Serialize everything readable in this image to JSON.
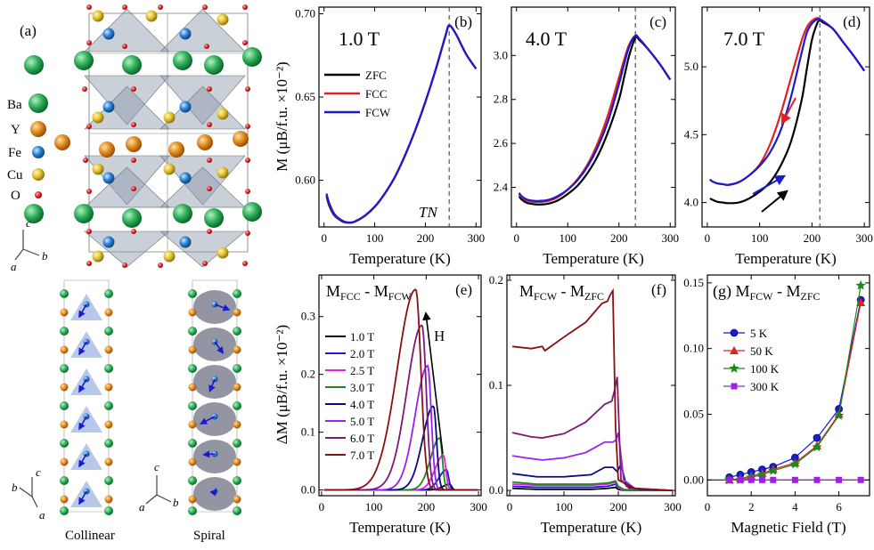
{
  "panel_a": {
    "label": "(a)",
    "atoms": [
      {
        "name": "Ba",
        "color": "#2fae5a"
      },
      {
        "name": "Y",
        "color": "#e08a1e"
      },
      {
        "name": "Fe",
        "color": "#2a7fd0"
      },
      {
        "name": "Cu",
        "color": "#e0c030"
      },
      {
        "name": "O",
        "color": "#dd2222"
      }
    ],
    "axes_top": {
      "c": "c",
      "a": "a",
      "b": "b"
    },
    "axes_bottom": {
      "c": "c",
      "a": "a",
      "b": "b"
    },
    "axes_bottom2": {
      "c": "c",
      "a": "a",
      "b": "b"
    },
    "collinear": "Collinear",
    "spiral": "Spiral"
  },
  "chart_data": [
    {
      "panel": "(b)",
      "type": "line",
      "field_label": "1.0 T",
      "xlabel": "Temperature (K)",
      "ylabel": "M (μB/f.u. ×10⁻²)",
      "xlim": [
        -10,
        310
      ],
      "ylim": [
        0.572,
        0.704
      ],
      "xticks": [
        0,
        100,
        200,
        300
      ],
      "yticks": [
        0.6,
        0.65,
        0.7
      ],
      "ytick_labels": [
        "0.60",
        "0.65",
        "0.70"
      ],
      "annotation": "TN",
      "vline_x": 247,
      "legend": [
        "ZFC",
        "FCC",
        "FCW"
      ],
      "series": [
        {
          "name": "ZFC",
          "color": "#000000",
          "x": [
            5,
            10,
            20,
            30,
            40,
            50,
            60,
            80,
            100,
            120,
            140,
            160,
            180,
            200,
            220,
            240,
            247,
            260,
            280,
            300
          ],
          "y": [
            0.5905,
            0.585,
            0.579,
            0.5765,
            0.5748,
            0.5745,
            0.575,
            0.5785,
            0.584,
            0.592,
            0.602,
            0.615,
            0.63,
            0.647,
            0.666,
            0.687,
            0.693,
            0.688,
            0.676,
            0.667
          ]
        },
        {
          "name": "FCC",
          "color": "#e02020",
          "x": [
            5,
            10,
            20,
            30,
            40,
            50,
            60,
            80,
            100,
            120,
            140,
            160,
            180,
            200,
            220,
            240,
            247,
            260,
            280,
            300
          ],
          "y": [
            0.5915,
            0.586,
            0.5795,
            0.5768,
            0.575,
            0.5746,
            0.575,
            0.5785,
            0.584,
            0.592,
            0.602,
            0.615,
            0.63,
            0.647,
            0.666,
            0.687,
            0.693,
            0.688,
            0.676,
            0.667
          ]
        },
        {
          "name": "FCW",
          "color": "#1a1ad0",
          "x": [
            5,
            10,
            20,
            30,
            40,
            50,
            60,
            80,
            100,
            120,
            140,
            160,
            180,
            200,
            220,
            240,
            247,
            260,
            280,
            300
          ],
          "y": [
            0.592,
            0.5865,
            0.58,
            0.577,
            0.5752,
            0.5747,
            0.5752,
            0.5787,
            0.5842,
            0.5922,
            0.6022,
            0.6152,
            0.6302,
            0.6472,
            0.6662,
            0.6872,
            0.693,
            0.688,
            0.676,
            0.667
          ]
        }
      ]
    },
    {
      "panel": "(c)",
      "type": "line",
      "field_label": "4.0 T",
      "xlabel": "Temperature (K)",
      "ylabel": "",
      "xlim": [
        -10,
        310
      ],
      "ylim": [
        2.22,
        3.22
      ],
      "xticks": [
        0,
        100,
        200,
        300
      ],
      "yticks": [
        2.4,
        2.6,
        2.8,
        3.0
      ],
      "ytick_labels": [
        "2.4",
        "2.6",
        "2.8",
        "3.0"
      ],
      "vline_x": 232,
      "series": [
        {
          "name": "ZFC",
          "color": "#000000",
          "x": [
            5,
            10,
            20,
            30,
            40,
            60,
            80,
            100,
            120,
            140,
            160,
            180,
            200,
            210,
            220,
            232,
            240,
            260,
            280,
            300
          ],
          "y": [
            2.36,
            2.345,
            2.33,
            2.325,
            2.322,
            2.325,
            2.34,
            2.37,
            2.41,
            2.47,
            2.55,
            2.66,
            2.8,
            2.9,
            3.0,
            3.08,
            3.07,
            3.02,
            2.96,
            2.89
          ]
        },
        {
          "name": "FCC",
          "color": "#e02020",
          "x": [
            5,
            10,
            20,
            30,
            40,
            60,
            80,
            100,
            120,
            140,
            160,
            180,
            200,
            210,
            220,
            232,
            240,
            260,
            280,
            300
          ],
          "y": [
            2.37,
            2.355,
            2.34,
            2.335,
            2.333,
            2.337,
            2.355,
            2.39,
            2.44,
            2.51,
            2.61,
            2.74,
            2.9,
            2.98,
            3.05,
            3.09,
            3.075,
            3.02,
            2.96,
            2.89
          ]
        },
        {
          "name": "FCW",
          "color": "#1a1ad0",
          "x": [
            5,
            10,
            20,
            30,
            40,
            60,
            80,
            100,
            120,
            140,
            160,
            180,
            200,
            210,
            220,
            232,
            240,
            260,
            280,
            300
          ],
          "y": [
            2.375,
            2.36,
            2.345,
            2.34,
            2.338,
            2.342,
            2.36,
            2.39,
            2.435,
            2.5,
            2.59,
            2.71,
            2.87,
            2.96,
            3.04,
            3.09,
            3.075,
            3.02,
            2.96,
            2.89
          ]
        }
      ]
    },
    {
      "panel": "(d)",
      "type": "line",
      "field_label": "7.0 T",
      "xlabel": "Temperature (K)",
      "ylabel": "",
      "xlim": [
        -10,
        310
      ],
      "ylim": [
        3.82,
        5.44
      ],
      "xticks": [
        0,
        100,
        200,
        300
      ],
      "yticks": [
        4.0,
        4.5,
        5.0
      ],
      "ytick_labels": [
        "4.0",
        "4.5",
        "5.0"
      ],
      "vline_x": 215,
      "series": [
        {
          "name": "ZFC",
          "color": "#000000",
          "x": [
            5,
            10,
            20,
            30,
            40,
            60,
            80,
            100,
            120,
            140,
            160,
            180,
            190,
            200,
            210,
            215,
            220,
            240,
            260,
            280,
            300
          ],
          "y": [
            4.03,
            4.02,
            4.005,
            4.0,
            3.995,
            4.0,
            4.03,
            4.08,
            4.15,
            4.27,
            4.45,
            4.75,
            4.98,
            5.2,
            5.32,
            5.34,
            5.33,
            5.28,
            5.18,
            5.08,
            4.97
          ]
        },
        {
          "name": "FCC",
          "color": "#e02020",
          "x": [
            5,
            10,
            20,
            30,
            40,
            60,
            80,
            100,
            120,
            140,
            160,
            180,
            190,
            200,
            210,
            215,
            220,
            240,
            260,
            280,
            300
          ],
          "y": [
            4.17,
            4.155,
            4.14,
            4.135,
            4.13,
            4.15,
            4.2,
            4.28,
            4.43,
            4.65,
            4.92,
            5.19,
            5.29,
            5.34,
            5.36,
            5.35,
            5.34,
            5.28,
            5.18,
            5.08,
            4.97
          ]
        },
        {
          "name": "FCW",
          "color": "#1a1ad0",
          "x": [
            5,
            10,
            20,
            30,
            40,
            60,
            80,
            100,
            120,
            140,
            160,
            180,
            190,
            200,
            210,
            215,
            220,
            240,
            260,
            280,
            300
          ],
          "y": [
            4.17,
            4.155,
            4.14,
            4.135,
            4.13,
            4.15,
            4.2,
            4.27,
            4.37,
            4.53,
            4.78,
            5.1,
            5.25,
            5.32,
            5.35,
            5.35,
            5.34,
            5.28,
            5.18,
            5.08,
            4.97
          ]
        }
      ]
    },
    {
      "panel": "(e)",
      "type": "line",
      "title": "MFCC - MFCW",
      "xlabel": "Temperature (K)",
      "ylabel": "ΔM (μB/f.u. ×10⁻²)",
      "xlim": [
        -5,
        305
      ],
      "ylim": [
        -0.01,
        0.372
      ],
      "xticks": [
        0,
        100,
        200,
        300
      ],
      "yticks": [
        0.0,
        0.1,
        0.2,
        0.3
      ],
      "ytick_labels": [
        "0.0",
        "0.1",
        "0.2",
        "0.3"
      ],
      "annotation": "H",
      "series": [
        {
          "name": "1.0 T",
          "color": "#000000",
          "peak_x": 245,
          "peak_y": 0.01,
          "width": 8
        },
        {
          "name": "2.0 T",
          "color": "#1a1ad0",
          "peak_x": 239,
          "peak_y": 0.035,
          "width": 9
        },
        {
          "name": "2.5 T",
          "color": "#e020e0",
          "peak_x": 233,
          "peak_y": 0.06,
          "width": 10
        },
        {
          "name": "3.0 T",
          "color": "#1a8a1a",
          "peak_x": 226,
          "peak_y": 0.09,
          "width": 11
        },
        {
          "name": "4.0 T",
          "color": "#0a0a80",
          "peak_x": 214,
          "peak_y": 0.145,
          "width": 13
        },
        {
          "name": "5.0 T",
          "color": "#9a20f0",
          "peak_x": 203,
          "peak_y": 0.215,
          "width": 15
        },
        {
          "name": "6.0 T",
          "color": "#7a1a7a",
          "peak_x": 192,
          "peak_y": 0.285,
          "width": 18
        },
        {
          "name": "7.0 T",
          "color": "#8a1010",
          "peak_x": 180,
          "peak_y": 0.347,
          "width": 22
        }
      ]
    },
    {
      "panel": "(f)",
      "type": "line",
      "title": "MFCW - MZFC",
      "xlabel": "Temperature (K)",
      "ylabel": "",
      "xlim": [
        -5,
        305
      ],
      "ylim": [
        -0.005,
        0.205
      ],
      "xticks": [
        0,
        100,
        200,
        300
      ],
      "yticks": [
        0.0,
        0.1,
        0.2
      ],
      "ytick_labels": [
        "0.0",
        "0.1",
        "0.2"
      ],
      "series": [
        {
          "name": "1.0 T",
          "color": "#000000",
          "x": [
            5,
            50,
            100,
            150,
            180,
            195,
            200,
            210,
            230,
            260,
            300
          ],
          "y": [
            0.002,
            0.001,
            0.001,
            0.001,
            0.002,
            0.003,
            0.001,
            0,
            0,
            0,
            0
          ]
        },
        {
          "name": "2.0 T",
          "color": "#1a1ad0",
          "x": [
            5,
            50,
            100,
            150,
            180,
            195,
            200,
            210,
            230,
            260,
            300
          ],
          "y": [
            0.004,
            0.003,
            0.003,
            0.003,
            0.004,
            0.006,
            0.002,
            0,
            0,
            0,
            0
          ]
        },
        {
          "name": "2.5 T",
          "color": "#e020e0",
          "x": [
            5,
            50,
            100,
            150,
            180,
            195,
            200,
            210,
            230,
            260,
            300
          ],
          "y": [
            0.006,
            0.005,
            0.005,
            0.005,
            0.006,
            0.008,
            0.003,
            0,
            0,
            0,
            0
          ]
        },
        {
          "name": "3.0 T",
          "color": "#1a8a1a",
          "x": [
            5,
            50,
            100,
            150,
            180,
            195,
            200,
            210,
            230,
            260,
            300
          ],
          "y": [
            0.008,
            0.006,
            0.006,
            0.006,
            0.007,
            0.009,
            0.004,
            0.001,
            0,
            0,
            0
          ]
        },
        {
          "name": "4.0 T",
          "color": "#0a0a80",
          "x": [
            5,
            50,
            100,
            150,
            175,
            190,
            198,
            205,
            215,
            240,
            300
          ],
          "y": [
            0.016,
            0.013,
            0.013,
            0.015,
            0.022,
            0.022,
            0.018,
            0.025,
            0.004,
            0.001,
            0.0
          ]
        },
        {
          "name": "5.0 T",
          "color": "#9a20f0",
          "x": [
            5,
            30,
            60,
            100,
            140,
            175,
            190,
            196,
            200,
            210,
            230,
            300
          ],
          "y": [
            0.033,
            0.031,
            0.029,
            0.031,
            0.036,
            0.046,
            0.046,
            0.048,
            0.055,
            0.01,
            0.002,
            0.0
          ]
        },
        {
          "name": "6.0 T",
          "color": "#7a1a7a",
          "x": [
            5,
            40,
            60,
            100,
            140,
            175,
            188,
            193,
            198,
            205,
            220,
            300
          ],
          "y": [
            0.055,
            0.051,
            0.05,
            0.054,
            0.065,
            0.082,
            0.085,
            0.095,
            0.108,
            0.01,
            0.002,
            0.0
          ]
        },
        {
          "name": "7.0 T",
          "color": "#8a1010",
          "x": [
            5,
            40,
            60,
            65,
            100,
            140,
            170,
            180,
            185,
            190,
            195,
            200,
            230,
            300
          ],
          "y": [
            0.137,
            0.135,
            0.137,
            0.133,
            0.146,
            0.16,
            0.178,
            0.18,
            0.186,
            0.19,
            0.06,
            0.01,
            0.002,
            0.0
          ]
        }
      ]
    },
    {
      "panel": "(g)",
      "type": "scatter",
      "title": "MFCW - MZFC",
      "xlabel": "Magnetic Field (T)",
      "ylabel": "",
      "xlim": [
        0,
        7.4
      ],
      "ylim": [
        -0.012,
        0.156
      ],
      "xticks": [
        0,
        2,
        4,
        6
      ],
      "yticks": [
        0.0,
        0.05,
        0.1,
        0.15
      ],
      "ytick_labels": [
        "0.00",
        "0.05",
        "0.10",
        "0.15"
      ],
      "hline_y": 0,
      "series": [
        {
          "name": "5 K",
          "color": "#1a1ad0",
          "marker": "circle",
          "x": [
            1,
            1.5,
            2,
            2.5,
            3,
            4,
            5,
            6,
            7
          ],
          "y": [
            0.002,
            0.004,
            0.006,
            0.008,
            0.01,
            0.017,
            0.032,
            0.054,
            0.137
          ]
        },
        {
          "name": "50 K",
          "color": "#e02020",
          "marker": "triangle",
          "x": [
            1,
            1.5,
            2,
            2.5,
            3,
            4,
            5,
            6,
            7
          ],
          "y": [
            0.0,
            0.001,
            0.003,
            0.005,
            0.008,
            0.013,
            0.026,
            0.05,
            0.135
          ]
        },
        {
          "name": "100 K",
          "color": "#1a8a1a",
          "marker": "star",
          "x": [
            1,
            1.5,
            2,
            2.5,
            3,
            4,
            5,
            6,
            7
          ],
          "y": [
            0.0,
            0.0,
            0.002,
            0.004,
            0.007,
            0.012,
            0.025,
            0.049,
            0.148
          ]
        },
        {
          "name": "300 K",
          "color": "#a020e0",
          "marker": "square",
          "x": [
            1,
            1.5,
            2,
            2.5,
            3,
            4,
            5,
            6,
            7
          ],
          "y": [
            0.0,
            0.0,
            0.0,
            0.0,
            0.0,
            0.0,
            0.0,
            0.0,
            0.0
          ]
        }
      ]
    }
  ]
}
